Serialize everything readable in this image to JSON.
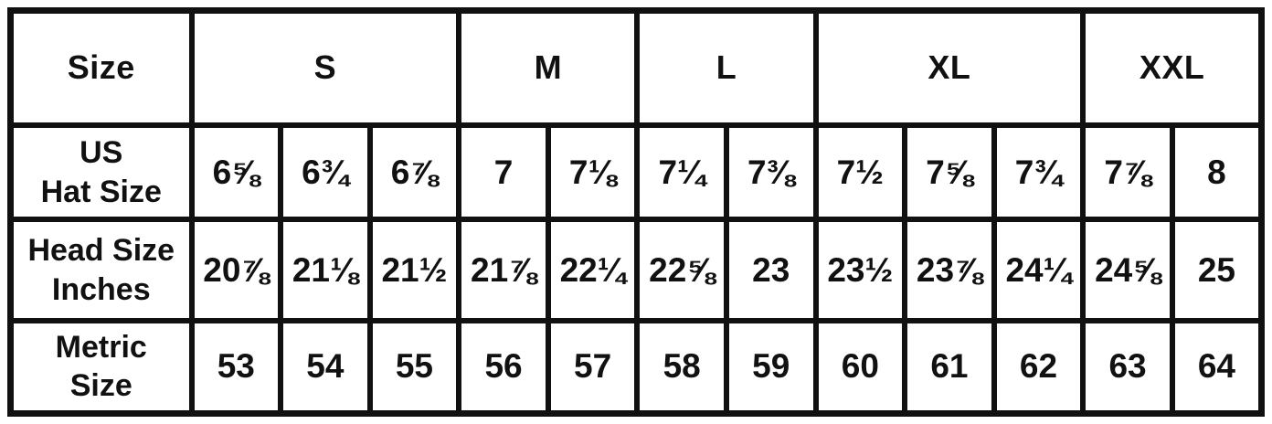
{
  "table": {
    "corner_label": "Size",
    "size_groups": [
      {
        "label": "S",
        "span": 3
      },
      {
        "label": "M",
        "span": 2
      },
      {
        "label": "L",
        "span": 2
      },
      {
        "label": "XL",
        "span": 3
      },
      {
        "label": "XXL",
        "span": 2
      }
    ],
    "rows": [
      {
        "label": "US\nHat Size",
        "values": [
          "6⅝",
          "6¾",
          "6⅞",
          "7",
          "7⅛",
          "7¼",
          "7⅜",
          "7½",
          "7⅝",
          "7¾",
          "7⅞",
          "8"
        ]
      },
      {
        "label": "Head Size\nInches",
        "values": [
          "20⅞",
          "21⅛",
          "21½",
          "21⅞",
          "22¼",
          "22⅝",
          "23",
          "23½",
          "23⅞",
          "24¼",
          "24⅝",
          "25"
        ]
      },
      {
        "label": "Metric\nSize",
        "values": [
          "53",
          "54",
          "55",
          "56",
          "57",
          "58",
          "59",
          "60",
          "61",
          "62",
          "63",
          "64"
        ]
      }
    ],
    "colors": {
      "border": "#111111",
      "background": "#ffffff",
      "text": "#111111"
    }
  }
}
